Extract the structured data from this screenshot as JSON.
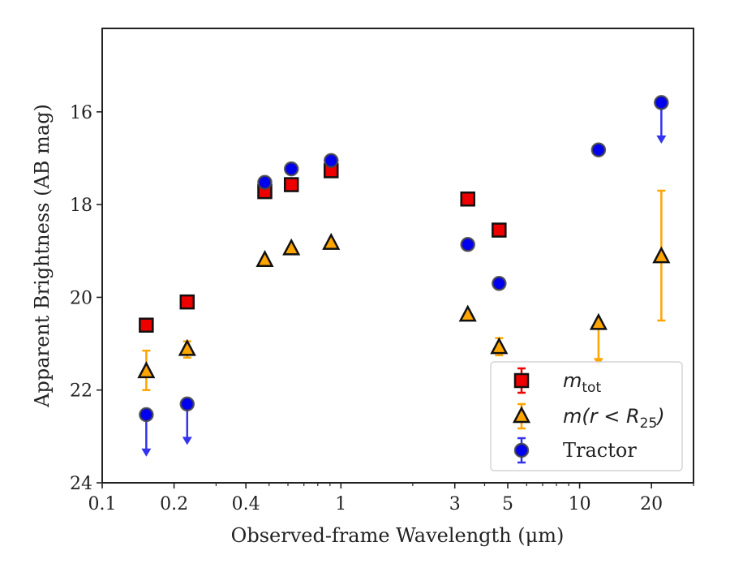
{
  "chart_data": {
    "type": "scatter",
    "xlabel": "Observed-frame Wavelength (μm)",
    "ylabel": "Apparent Brightness (AB mag)",
    "xscale": "log",
    "xlim": [
      0.1,
      30
    ],
    "ylim": [
      24,
      14.2
    ],
    "y_inverted": true,
    "x_ticks": [
      {
        "value": 0.1,
        "label": "0.1"
      },
      {
        "value": 0.2,
        "label": "0.2"
      },
      {
        "value": 0.4,
        "label": "0.4"
      },
      {
        "value": 1,
        "label": "1"
      },
      {
        "value": 3,
        "label": "3"
      },
      {
        "value": 5,
        "label": "5"
      },
      {
        "value": 10,
        "label": "10"
      },
      {
        "value": 20,
        "label": "20"
      }
    ],
    "y_ticks": [
      {
        "value": 16,
        "label": "16"
      },
      {
        "value": 18,
        "label": "18"
      },
      {
        "value": 20,
        "label": "20"
      },
      {
        "value": 22,
        "label": "22"
      },
      {
        "value": 24,
        "label": "24"
      }
    ],
    "grid": false,
    "legend_position": "lower-right",
    "series": [
      {
        "name": "m_tot",
        "marker": "square",
        "color": "#ee0000",
        "edge_color": "#111111",
        "errorbar_color": "#ee0000",
        "points": [
          {
            "x": 0.153,
            "y": 20.6
          },
          {
            "x": 0.227,
            "y": 20.1
          },
          {
            "x": 0.48,
            "y": 17.72
          },
          {
            "x": 0.62,
            "y": 17.57
          },
          {
            "x": 0.91,
            "y": 17.27
          },
          {
            "x": 3.4,
            "y": 17.88
          },
          {
            "x": 4.6,
            "y": 18.55
          }
        ]
      },
      {
        "name": "m(r < R25)",
        "marker": "triangle",
        "color": "#ffa500",
        "edge_color": "#111111",
        "errorbar_color": "#ffa500",
        "points": [
          {
            "x": 0.153,
            "y": 21.6,
            "yerr": [
              21.15,
              22.0
            ]
          },
          {
            "x": 0.227,
            "y": 21.12,
            "yerr": [
              20.95,
              21.3
            ]
          },
          {
            "x": 0.48,
            "y": 19.2
          },
          {
            "x": 0.62,
            "y": 18.95
          },
          {
            "x": 0.91,
            "y": 18.83
          },
          {
            "x": 3.4,
            "y": 20.38
          },
          {
            "x": 4.6,
            "y": 21.08,
            "yerr": [
              20.88,
              21.25
            ]
          },
          {
            "x": 12.0,
            "y": 20.56,
            "upper_limit": true,
            "arrow_to": 21.45
          },
          {
            "x": 22.0,
            "y": 19.12,
            "yerr": [
              17.7,
              20.5
            ]
          }
        ]
      },
      {
        "name": "Tractor",
        "marker": "circle",
        "color": "#0000ee",
        "edge_color": "#444444",
        "errorbar_color": "#3333ee",
        "points": [
          {
            "x": 0.153,
            "y": 22.53,
            "upper_limit": true,
            "arrow_to": 23.4
          },
          {
            "x": 0.227,
            "y": 22.3,
            "upper_limit": true,
            "arrow_to": 23.15
          },
          {
            "x": 0.48,
            "y": 17.52
          },
          {
            "x": 0.62,
            "y": 17.23
          },
          {
            "x": 0.91,
            "y": 17.05
          },
          {
            "x": 3.4,
            "y": 18.86
          },
          {
            "x": 4.6,
            "y": 19.7
          },
          {
            "x": 12.0,
            "y": 16.82
          },
          {
            "x": 22.0,
            "y": 15.8,
            "upper_limit": true,
            "arrow_to": 16.65
          }
        ]
      }
    ]
  },
  "legend": {
    "entries": [
      {
        "type": "math",
        "main": "m",
        "sub": "tot"
      },
      {
        "type": "math",
        "main": "m(r < R",
        "sub": "25",
        "tail": ")"
      },
      {
        "type": "text",
        "label": "Tractor"
      }
    ]
  }
}
